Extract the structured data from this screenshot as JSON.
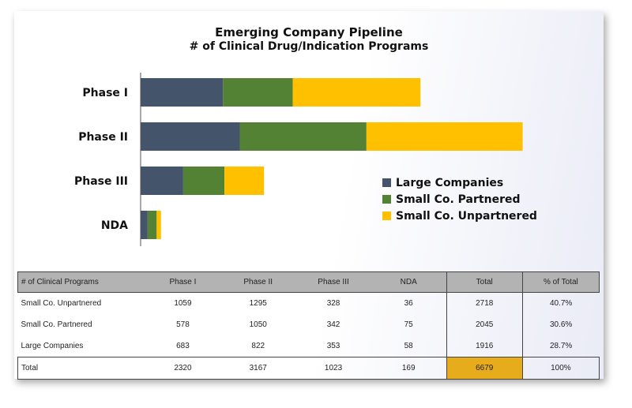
{
  "chart_data": {
    "type": "bar",
    "orientation": "horizontal",
    "stacked": true,
    "title": "Emerging Company Pipeline",
    "subtitle": "# of Clinical Drug/Indication Programs",
    "categories": [
      "Phase I",
      "Phase II",
      "Phase III",
      "NDA"
    ],
    "series": [
      {
        "name": "Large Companies",
        "values": [
          683,
          822,
          353,
          58
        ],
        "color": "#44546a"
      },
      {
        "name": "Small Co. Partnered",
        "values": [
          578,
          1050,
          342,
          75
        ],
        "color": "#548235"
      },
      {
        "name": "Small Co. Unpartnered",
        "values": [
          1059,
          1295,
          328,
          36
        ],
        "color": "#ffc000"
      }
    ],
    "xlim": [
      0,
      3200
    ],
    "grid": false,
    "legend_position": "right"
  },
  "table": {
    "headers": [
      "# of Clinical Programs",
      "Phase I",
      "Phase II",
      "Phase III",
      "NDA",
      "Total",
      "% of Total"
    ],
    "rows": [
      [
        "Small Co. Unpartnered",
        "1059",
        "1295",
        "328",
        "36",
        "2718",
        "40.7%"
      ],
      [
        "Small Co. Partnered",
        "578",
        "1050",
        "342",
        "75",
        "2045",
        "30.6%"
      ],
      [
        "Large Companies",
        "683",
        "822",
        "353",
        "58",
        "1916",
        "28.7%"
      ]
    ],
    "total": [
      "Total",
      "2320",
      "3167",
      "1023",
      "169",
      "6679",
      "100%"
    ],
    "highlight_color": "#e6ac1c"
  }
}
